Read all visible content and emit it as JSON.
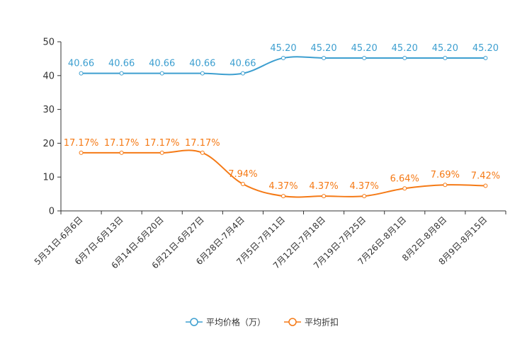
{
  "chart_data": {
    "type": "line",
    "title": "",
    "xlabel": "",
    "ylabel": "",
    "ylim": [
      0,
      50
    ],
    "yticks": [
      0,
      10,
      20,
      30,
      40,
      50
    ],
    "grid": false,
    "legend_position": "bottom-center",
    "categories": [
      "5月31日-6月6日",
      "6月7日-6月13日",
      "6月14日-6月20日",
      "6月21日-6月27日",
      "6月28日-7月4日",
      "7月5日-7月11日",
      "7月12日-7月18日",
      "7月19日-7月25日",
      "7月26日-8月1日",
      "8月2日-8月8日",
      "8月9日-8月15日"
    ],
    "series": [
      {
        "name": "平均价格（万）",
        "color": "#3d9fd0",
        "values": [
          40.66,
          40.66,
          40.66,
          40.66,
          40.66,
          45.2,
          45.2,
          45.2,
          45.2,
          45.2,
          45.2
        ],
        "labels": [
          "40.66",
          "40.66",
          "40.66",
          "40.66",
          "40.66",
          "45.20",
          "45.20",
          "45.20",
          "45.20",
          "45.20",
          "45.20"
        ]
      },
      {
        "name": "平均折扣",
        "color": "#f57a16",
        "values": [
          17.17,
          17.17,
          17.17,
          17.17,
          7.94,
          4.37,
          4.37,
          4.37,
          6.64,
          7.69,
          7.42
        ],
        "labels": [
          "17.17%",
          "17.17%",
          "17.17%",
          "17.17%",
          "7.94%",
          "4.37%",
          "4.37%",
          "4.37%",
          "6.64%",
          "7.69%",
          "7.42%"
        ]
      }
    ]
  }
}
